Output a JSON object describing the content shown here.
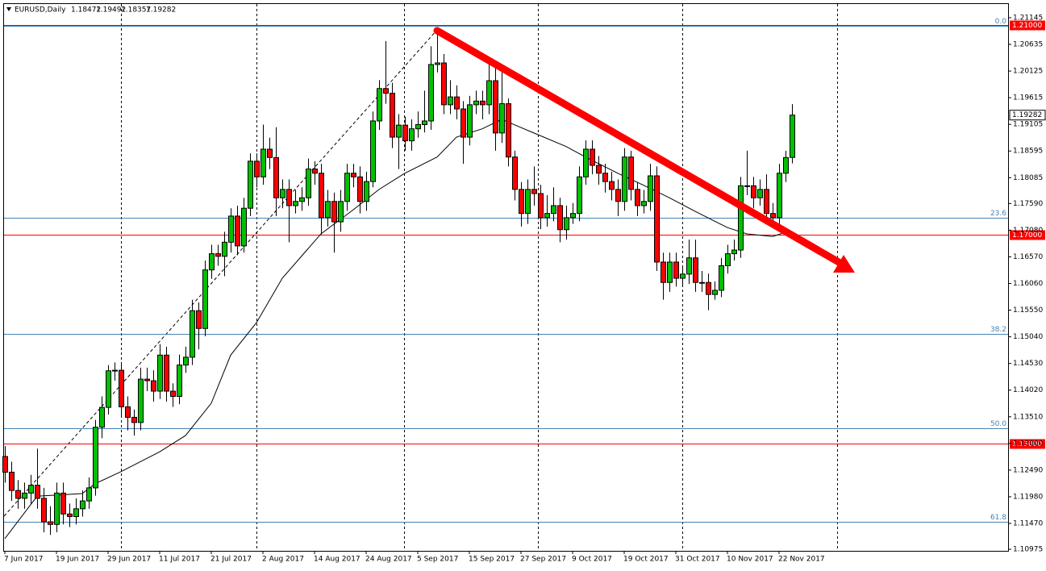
{
  "chart_data": {
    "type": "candlestick",
    "title": "EURUSD,Daily",
    "categories": [
      "7 Jun 2017",
      null,
      null,
      null,
      null,
      null,
      null,
      null,
      "19 Jun 2017",
      null,
      null,
      null,
      null,
      null,
      null,
      null,
      "29 Jun 2017",
      null,
      null,
      null,
      null,
      null,
      null,
      null,
      "11 Jul 2017",
      null,
      null,
      null,
      null,
      null,
      null,
      null,
      "21 Jul 2017",
      null,
      null,
      null,
      null,
      null,
      null,
      null,
      "2 Aug 2017",
      null,
      null,
      null,
      null,
      null,
      null,
      null,
      "14 Aug 2017",
      null,
      null,
      null,
      null,
      null,
      null,
      null,
      "24 Aug 2017",
      null,
      null,
      null,
      null,
      null,
      null,
      null,
      "5 Sep 2017",
      null,
      null,
      null,
      null,
      null,
      null,
      null,
      "15 Sep 2017",
      null,
      null,
      null,
      null,
      null,
      null,
      null,
      "27 Sep 2017",
      null,
      null,
      null,
      null,
      null,
      null,
      null,
      "9 Oct 2017",
      null,
      null,
      null,
      null,
      null,
      null,
      null,
      "19 Oct 2017",
      null,
      null,
      null,
      null,
      null,
      null,
      null,
      "31 Oct 2017",
      null,
      null,
      null,
      null,
      null,
      null,
      null,
      "10 Nov 2017",
      null,
      null,
      null,
      null,
      null,
      null,
      null,
      "22 Nov 2017",
      null,
      null
    ],
    "open": [
      1.1275,
      1.1245,
      1.121,
      1.1195,
      1.1205,
      1.122,
      1.1195,
      1.115,
      1.1145,
      1.1205,
      1.1165,
      1.116,
      1.1175,
      1.119,
      1.1215,
      1.1331,
      1.1369,
      1.1439,
      1.144,
      1.137,
      1.135,
      1.134,
      1.1423,
      1.142,
      1.14,
      1.1469,
      1.14,
      1.139,
      1.145,
      1.1465,
      1.1554,
      1.152,
      1.1632,
      1.1663,
      1.1658,
      1.1685,
      1.1735,
      1.1678,
      1.175,
      1.184,
      1.181,
      1.1863,
      1.1847,
      1.177,
      1.1786,
      1.1755,
      1.1763,
      1.177,
      1.1825,
      1.1817,
      1.1732,
      1.1763,
      1.1724,
      1.1763,
      1.1817,
      1.181,
      1.1763,
      1.1801,
      1.1917,
      1.1979,
      1.197,
      1.1886,
      1.1909,
      1.1879,
      1.1902,
      1.191,
      1.1917,
      1.2025,
      1.2028,
      1.1948,
      1.1963,
      1.194,
      1.1886,
      1.1948,
      1.1955,
      1.1948,
      1.1994,
      1.1894,
      1.195,
      1.1848,
      1.1786,
      1.174,
      1.1786,
      1.1778,
      1.1732,
      1.174,
      1.1755,
      1.1709,
      1.1732,
      1.174,
      1.181,
      1.1863,
      1.1832,
      1.1817,
      1.1801,
      1.1786,
      1.1763,
      1.1848,
      1.1786,
      1.1755,
      1.1763,
      1.1812,
      1.1647,
      1.1608,
      1.1647,
      1.1616,
      1.1624,
      1.1655,
      1.1608,
      1.1608,
      1.1585,
      1.1593,
      1.164,
      1.1663,
      1.167,
      1.1793,
      1.1793,
      1.177,
      1.1786,
      1.174,
      1.1732,
      1.1817,
      1.18472
    ],
    "high": [
      1.1295,
      1.1265,
      1.123,
      1.1225,
      1.124,
      1.129,
      1.1215,
      1.118,
      1.1225,
      1.1225,
      1.1185,
      1.1195,
      1.121,
      1.1235,
      1.1345,
      1.139,
      1.145,
      1.1455,
      1.1455,
      1.139,
      1.1365,
      1.1445,
      1.1445,
      1.144,
      1.149,
      1.1485,
      1.1415,
      1.147,
      1.1485,
      1.1575,
      1.157,
      1.165,
      1.168,
      1.168,
      1.1705,
      1.175,
      1.1755,
      1.177,
      1.1855,
      1.1855,
      1.191,
      1.1885,
      1.1905,
      1.1805,
      1.1805,
      1.1785,
      1.179,
      1.1845,
      1.184,
      1.1835,
      1.1785,
      1.178,
      1.1785,
      1.1835,
      1.1835,
      1.183,
      1.182,
      1.1935,
      1.1995,
      1.207,
      1.199,
      1.193,
      1.1925,
      1.192,
      1.1935,
      1.1975,
      1.206,
      1.2092,
      1.2045,
      1.1995,
      1.1985,
      1.1955,
      1.1965,
      1.1975,
      1.1975,
      1.203,
      1.2025,
      1.202,
      1.196,
      1.186,
      1.18,
      1.1805,
      1.183,
      1.1795,
      1.1775,
      1.179,
      1.177,
      1.1755,
      1.176,
      1.183,
      1.188,
      1.188,
      1.185,
      1.1835,
      1.182,
      1.1805,
      1.1865,
      1.186,
      1.18,
      1.1785,
      1.1835,
      1.183,
      1.1665,
      1.1665,
      1.1665,
      1.164,
      1.169,
      1.169,
      1.163,
      1.1625,
      1.161,
      1.1655,
      1.168,
      1.169,
      1.181,
      1.186,
      1.181,
      1.1805,
      1.1815,
      1.176,
      1.1835,
      1.186,
      1.19492
    ],
    "low": [
      1.1225,
      1.119,
      1.1175,
      1.1175,
      1.1185,
      1.1175,
      1.113,
      1.1125,
      1.113,
      1.1145,
      1.114,
      1.1145,
      1.116,
      1.1175,
      1.12,
      1.131,
      1.1355,
      1.142,
      1.135,
      1.1325,
      1.1315,
      1.1325,
      1.14,
      1.138,
      1.1385,
      1.138,
      1.137,
      1.1375,
      1.1435,
      1.145,
      1.148,
      1.1505,
      1.1615,
      1.164,
      1.162,
      1.1665,
      1.166,
      1.1665,
      1.1735,
      1.179,
      1.1795,
      1.1825,
      1.1735,
      1.175,
      1.1685,
      1.174,
      1.1745,
      1.1755,
      1.1795,
      1.17,
      1.1715,
      1.1665,
      1.1705,
      1.1745,
      1.179,
      1.174,
      1.1745,
      1.179,
      1.19,
      1.195,
      1.1865,
      1.1825,
      1.186,
      1.186,
      1.1885,
      1.1895,
      1.19,
      1.201,
      1.193,
      1.193,
      1.192,
      1.1835,
      1.187,
      1.193,
      1.192,
      1.193,
      1.186,
      1.1875,
      1.183,
      1.1765,
      1.1715,
      1.172,
      1.1755,
      1.171,
      1.1715,
      1.1725,
      1.1685,
      1.169,
      1.172,
      1.1725,
      1.1795,
      1.1815,
      1.1795,
      1.178,
      1.1765,
      1.1735,
      1.1745,
      1.1765,
      1.1735,
      1.174,
      1.1745,
      1.163,
      1.1575,
      1.159,
      1.16,
      1.16,
      1.1605,
      1.159,
      1.159,
      1.1555,
      1.1575,
      1.158,
      1.1625,
      1.165,
      1.1655,
      1.1775,
      1.175,
      1.1755,
      1.1725,
      1.172,
      1.1715,
      1.18,
      1.18357
    ],
    "close": [
      1.1245,
      1.121,
      1.1195,
      1.1205,
      1.122,
      1.1195,
      1.115,
      1.1145,
      1.1205,
      1.1165,
      1.116,
      1.1175,
      1.119,
      1.1215,
      1.1331,
      1.1369,
      1.1439,
      1.144,
      1.137,
      1.135,
      1.134,
      1.1423,
      1.142,
      1.14,
      1.1469,
      1.14,
      1.139,
      1.145,
      1.1465,
      1.1554,
      1.152,
      1.1632,
      1.1663,
      1.1658,
      1.1685,
      1.1735,
      1.1678,
      1.175,
      1.184,
      1.181,
      1.1863,
      1.1847,
      1.177,
      1.1786,
      1.1755,
      1.1763,
      1.177,
      1.1825,
      1.1817,
      1.1732,
      1.1763,
      1.1724,
      1.1763,
      1.1817,
      1.181,
      1.1763,
      1.1801,
      1.1917,
      1.1979,
      1.197,
      1.1886,
      1.1909,
      1.1879,
      1.1902,
      1.191,
      1.1917,
      1.2025,
      1.2028,
      1.1948,
      1.1963,
      1.194,
      1.1886,
      1.1948,
      1.1955,
      1.1948,
      1.1994,
      1.1894,
      1.195,
      1.1848,
      1.1786,
      1.174,
      1.1786,
      1.1778,
      1.1732,
      1.174,
      1.1755,
      1.1709,
      1.1732,
      1.174,
      1.181,
      1.1863,
      1.1832,
      1.1817,
      1.1801,
      1.1786,
      1.1763,
      1.1848,
      1.1786,
      1.1755,
      1.1763,
      1.1812,
      1.1647,
      1.1608,
      1.1647,
      1.1616,
      1.1624,
      1.1655,
      1.1608,
      1.1608,
      1.1585,
      1.1593,
      1.164,
      1.1663,
      1.167,
      1.1793,
      1.1793,
      1.177,
      1.1786,
      1.174,
      1.1732,
      1.1817,
      1.1847,
      1.19282
    ],
    "up_color": "#00c000",
    "down_color": "#ff0000",
    "indicator": {
      "x": [
        0,
        5,
        12,
        14,
        18,
        24,
        28,
        32,
        35,
        39,
        43,
        49,
        54,
        58,
        62,
        67,
        70,
        74,
        77,
        82,
        87,
        90,
        95,
        99,
        103,
        107,
        112,
        115,
        119,
        121
      ],
      "values": [
        1.1118,
        1.1199,
        1.1204,
        1.1223,
        1.1246,
        1.1284,
        1.1315,
        1.1377,
        1.1469,
        1.1531,
        1.1616,
        1.1701,
        1.1747,
        1.1786,
        1.1817,
        1.1848,
        1.1886,
        1.1902,
        1.192,
        1.1894,
        1.1868,
        1.1848,
        1.1817,
        1.1794,
        1.177,
        1.1744,
        1.1713,
        1.1701,
        1.1696,
        1.1704
      ],
      "color": "#000000"
    },
    "levels": [
      {
        "value": 1.21,
        "label": "1.21000"
      },
      {
        "value": 1.17,
        "label": "1.17000"
      },
      {
        "value": 1.13,
        "label": "1.13000"
      }
    ],
    "fibonacci": [
      {
        "label": "0.0",
        "price": 1.2099
      },
      {
        "label": "23.6",
        "price": 1.1732
      },
      {
        "label": "38.2",
        "price": 1.151
      },
      {
        "label": "50.0",
        "price": 1.1329
      },
      {
        "label": "61.8",
        "price": 1.115
      }
    ],
    "ylim": [
      1.10945,
      1.21407
    ],
    "yticks": [
      1.21145,
      1.20635,
      1.20125,
      1.19615,
      1.19105,
      1.18595,
      1.18085,
      {
        "value": 1.1759,
        "label": "1.17590"
      },
      {
        "value": 1.1708,
        "label": "1.17080"
      },
      {
        "value": 1.1657,
        "label": "1.16570"
      },
      {
        "value": 1.1606,
        "label": "1.16060"
      },
      {
        "value": 1.1555,
        "label": "1.15550"
      },
      {
        "value": 1.1504,
        "label": "1.15040"
      },
      {
        "value": 1.1453,
        "label": "1.14530"
      },
      {
        "value": 1.1402,
        "label": "1.14020"
      },
      {
        "value": 1.1351,
        "label": "1.13510"
      },
      {
        "value": 1.13,
        "label": "1.13000"
      },
      {
        "value": 1.1249,
        "label": "1.12490"
      },
      {
        "value": 1.1198,
        "label": "1.11980"
      },
      {
        "value": 1.1147,
        "label": "1.11470"
      },
      1.10975
    ]
  }
}
